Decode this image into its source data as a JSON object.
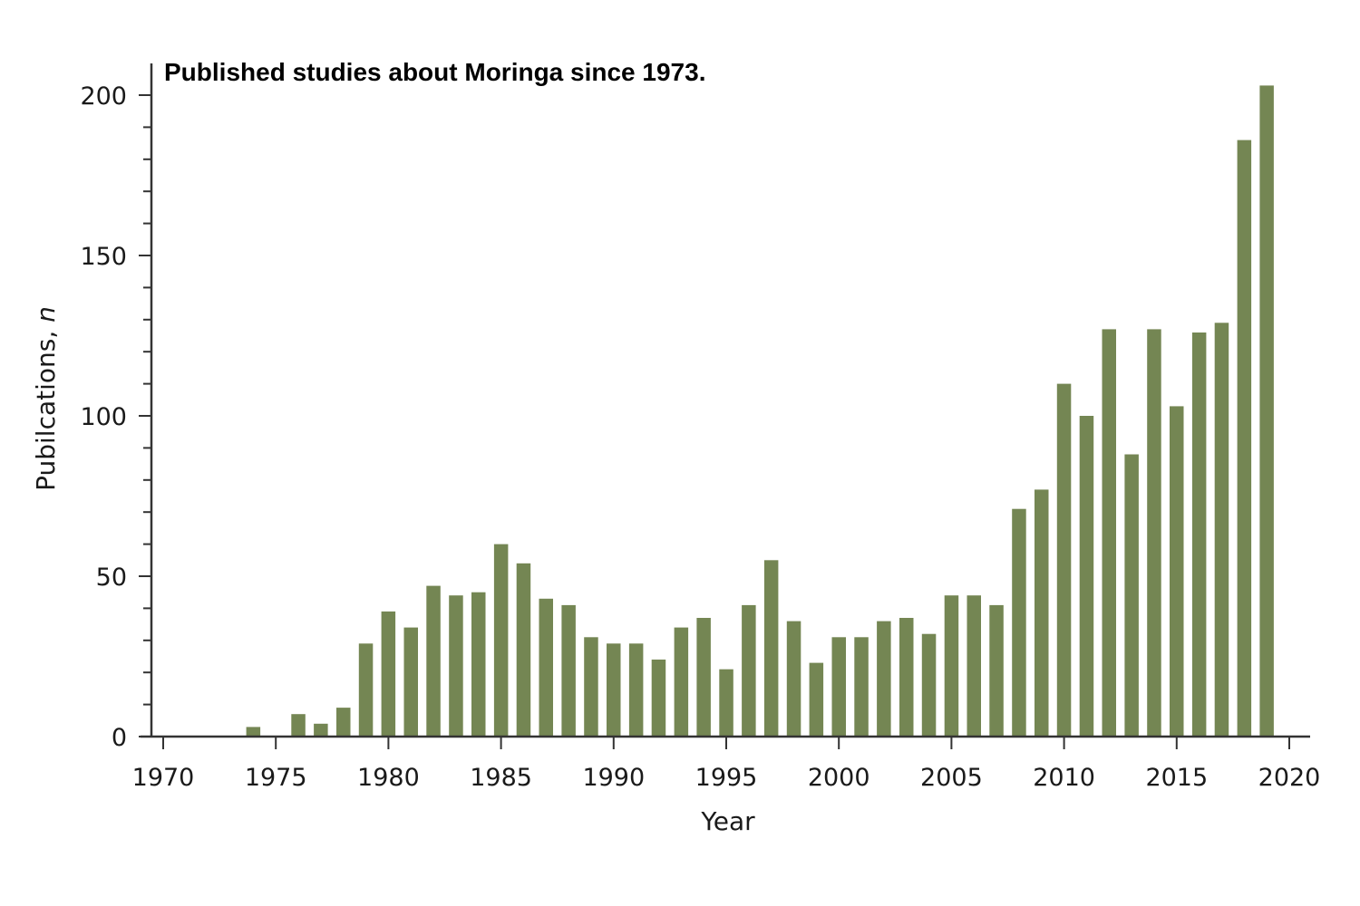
{
  "chart_data": {
    "type": "bar",
    "title": "Published studies about Moringa since 1973.",
    "xlabel": "Year",
    "ylabel_text": "Pubilcations, ",
    "ylabel_italic": "n",
    "x": [
      1974,
      1976,
      1977,
      1978,
      1979,
      1980,
      1981,
      1982,
      1983,
      1984,
      1985,
      1986,
      1987,
      1988,
      1989,
      1990,
      1991,
      1992,
      1993,
      1994,
      1995,
      1996,
      1997,
      1998,
      1999,
      2000,
      2001,
      2002,
      2003,
      2004,
      2005,
      2006,
      2007,
      2008,
      2009,
      2010,
      2011,
      2012,
      2013,
      2014,
      2015,
      2016,
      2017,
      2018,
      2019
    ],
    "values": [
      3,
      7,
      4,
      9,
      29,
      39,
      34,
      47,
      44,
      45,
      60,
      54,
      43,
      41,
      31,
      29,
      29,
      24,
      34,
      37,
      21,
      41,
      55,
      36,
      23,
      31,
      31,
      36,
      37,
      32,
      44,
      44,
      41,
      71,
      77,
      110,
      100,
      127,
      88,
      127,
      103,
      126,
      129,
      186,
      203
    ],
    "xlim": [
      1970,
      2020
    ],
    "ylim": [
      0,
      210
    ],
    "x_ticks": [
      1970,
      1975,
      1980,
      1985,
      1990,
      1995,
      2000,
      2005,
      2010,
      2015,
      2020
    ],
    "y_ticks": [
      0,
      50,
      100,
      150,
      200
    ],
    "bar_color": "#748653",
    "axis_color": "#333333",
    "grid": false
  }
}
